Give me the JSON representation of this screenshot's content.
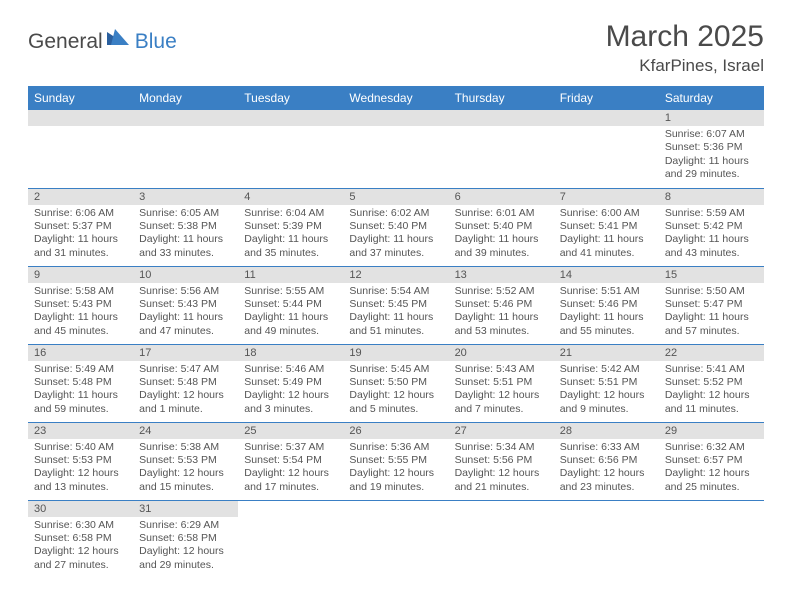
{
  "logo": {
    "general": "General",
    "blue": "Blue"
  },
  "title": "March 2025",
  "location": "KfarPines, Israel",
  "colors": {
    "header_bg": "#3a7fc4",
    "header_text": "#ffffff",
    "band_bg": "#e2e2e2",
    "text": "#4a4a4a",
    "rule": "#3a7fc4"
  },
  "weekdays": [
    "Sunday",
    "Monday",
    "Tuesday",
    "Wednesday",
    "Thursday",
    "Friday",
    "Saturday"
  ],
  "weeks": [
    [
      null,
      null,
      null,
      null,
      null,
      null,
      {
        "n": "1",
        "sr": "Sunrise: 6:07 AM",
        "ss": "Sunset: 5:36 PM",
        "dl": "Daylight: 11 hours and 29 minutes."
      }
    ],
    [
      {
        "n": "2",
        "sr": "Sunrise: 6:06 AM",
        "ss": "Sunset: 5:37 PM",
        "dl": "Daylight: 11 hours and 31 minutes."
      },
      {
        "n": "3",
        "sr": "Sunrise: 6:05 AM",
        "ss": "Sunset: 5:38 PM",
        "dl": "Daylight: 11 hours and 33 minutes."
      },
      {
        "n": "4",
        "sr": "Sunrise: 6:04 AM",
        "ss": "Sunset: 5:39 PM",
        "dl": "Daylight: 11 hours and 35 minutes."
      },
      {
        "n": "5",
        "sr": "Sunrise: 6:02 AM",
        "ss": "Sunset: 5:40 PM",
        "dl": "Daylight: 11 hours and 37 minutes."
      },
      {
        "n": "6",
        "sr": "Sunrise: 6:01 AM",
        "ss": "Sunset: 5:40 PM",
        "dl": "Daylight: 11 hours and 39 minutes."
      },
      {
        "n": "7",
        "sr": "Sunrise: 6:00 AM",
        "ss": "Sunset: 5:41 PM",
        "dl": "Daylight: 11 hours and 41 minutes."
      },
      {
        "n": "8",
        "sr": "Sunrise: 5:59 AM",
        "ss": "Sunset: 5:42 PM",
        "dl": "Daylight: 11 hours and 43 minutes."
      }
    ],
    [
      {
        "n": "9",
        "sr": "Sunrise: 5:58 AM",
        "ss": "Sunset: 5:43 PM",
        "dl": "Daylight: 11 hours and 45 minutes."
      },
      {
        "n": "10",
        "sr": "Sunrise: 5:56 AM",
        "ss": "Sunset: 5:43 PM",
        "dl": "Daylight: 11 hours and 47 minutes."
      },
      {
        "n": "11",
        "sr": "Sunrise: 5:55 AM",
        "ss": "Sunset: 5:44 PM",
        "dl": "Daylight: 11 hours and 49 minutes."
      },
      {
        "n": "12",
        "sr": "Sunrise: 5:54 AM",
        "ss": "Sunset: 5:45 PM",
        "dl": "Daylight: 11 hours and 51 minutes."
      },
      {
        "n": "13",
        "sr": "Sunrise: 5:52 AM",
        "ss": "Sunset: 5:46 PM",
        "dl": "Daylight: 11 hours and 53 minutes."
      },
      {
        "n": "14",
        "sr": "Sunrise: 5:51 AM",
        "ss": "Sunset: 5:46 PM",
        "dl": "Daylight: 11 hours and 55 minutes."
      },
      {
        "n": "15",
        "sr": "Sunrise: 5:50 AM",
        "ss": "Sunset: 5:47 PM",
        "dl": "Daylight: 11 hours and 57 minutes."
      }
    ],
    [
      {
        "n": "16",
        "sr": "Sunrise: 5:49 AM",
        "ss": "Sunset: 5:48 PM",
        "dl": "Daylight: 11 hours and 59 minutes."
      },
      {
        "n": "17",
        "sr": "Sunrise: 5:47 AM",
        "ss": "Sunset: 5:48 PM",
        "dl": "Daylight: 12 hours and 1 minute."
      },
      {
        "n": "18",
        "sr": "Sunrise: 5:46 AM",
        "ss": "Sunset: 5:49 PM",
        "dl": "Daylight: 12 hours and 3 minutes."
      },
      {
        "n": "19",
        "sr": "Sunrise: 5:45 AM",
        "ss": "Sunset: 5:50 PM",
        "dl": "Daylight: 12 hours and 5 minutes."
      },
      {
        "n": "20",
        "sr": "Sunrise: 5:43 AM",
        "ss": "Sunset: 5:51 PM",
        "dl": "Daylight: 12 hours and 7 minutes."
      },
      {
        "n": "21",
        "sr": "Sunrise: 5:42 AM",
        "ss": "Sunset: 5:51 PM",
        "dl": "Daylight: 12 hours and 9 minutes."
      },
      {
        "n": "22",
        "sr": "Sunrise: 5:41 AM",
        "ss": "Sunset: 5:52 PM",
        "dl": "Daylight: 12 hours and 11 minutes."
      }
    ],
    [
      {
        "n": "23",
        "sr": "Sunrise: 5:40 AM",
        "ss": "Sunset: 5:53 PM",
        "dl": "Daylight: 12 hours and 13 minutes."
      },
      {
        "n": "24",
        "sr": "Sunrise: 5:38 AM",
        "ss": "Sunset: 5:53 PM",
        "dl": "Daylight: 12 hours and 15 minutes."
      },
      {
        "n": "25",
        "sr": "Sunrise: 5:37 AM",
        "ss": "Sunset: 5:54 PM",
        "dl": "Daylight: 12 hours and 17 minutes."
      },
      {
        "n": "26",
        "sr": "Sunrise: 5:36 AM",
        "ss": "Sunset: 5:55 PM",
        "dl": "Daylight: 12 hours and 19 minutes."
      },
      {
        "n": "27",
        "sr": "Sunrise: 5:34 AM",
        "ss": "Sunset: 5:56 PM",
        "dl": "Daylight: 12 hours and 21 minutes."
      },
      {
        "n": "28",
        "sr": "Sunrise: 6:33 AM",
        "ss": "Sunset: 6:56 PM",
        "dl": "Daylight: 12 hours and 23 minutes."
      },
      {
        "n": "29",
        "sr": "Sunrise: 6:32 AM",
        "ss": "Sunset: 6:57 PM",
        "dl": "Daylight: 12 hours and 25 minutes."
      }
    ],
    [
      {
        "n": "30",
        "sr": "Sunrise: 6:30 AM",
        "ss": "Sunset: 6:58 PM",
        "dl": "Daylight: 12 hours and 27 minutes."
      },
      {
        "n": "31",
        "sr": "Sunrise: 6:29 AM",
        "ss": "Sunset: 6:58 PM",
        "dl": "Daylight: 12 hours and 29 minutes."
      },
      null,
      null,
      null,
      null,
      null
    ]
  ]
}
